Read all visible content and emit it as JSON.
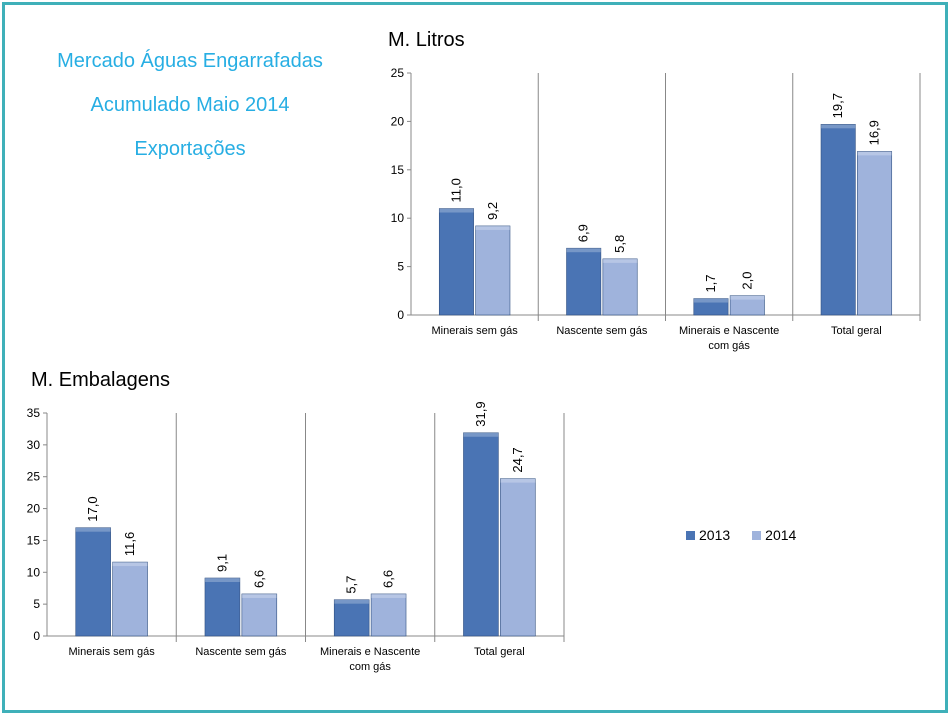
{
  "header": {
    "line1": "Mercado Águas Engarrafadas",
    "line2": "Acumulado Maio 2014",
    "line3": "Exportações"
  },
  "colors": {
    "series2013": "#4a74b4",
    "series2014": "#9fb3dc",
    "frame": "#3fb0b9",
    "headline": "#27aee3"
  },
  "legend": {
    "items": [
      "2013",
      "2014"
    ]
  },
  "chart_data": [
    {
      "type": "bar",
      "title": "M. Litros",
      "categories": [
        [
          "Minerais sem gás"
        ],
        [
          "Nascente sem gás"
        ],
        [
          "Minerais e Nascente",
          "com gás"
        ],
        [
          "Total geral"
        ]
      ],
      "series": [
        {
          "name": "2013",
          "values": [
            11.0,
            6.9,
            1.7,
            19.7
          ],
          "labels": [
            "11,0",
            "6,9",
            "1,7",
            "19,7"
          ]
        },
        {
          "name": "2014",
          "values": [
            9.2,
            5.8,
            2.0,
            16.9
          ],
          "labels": [
            "9,2",
            "5,8",
            "2,0",
            "16,9"
          ]
        }
      ],
      "ylim": [
        0,
        25
      ],
      "yticks": [
        0,
        5,
        10,
        15,
        20,
        25
      ],
      "grid": false
    },
    {
      "type": "bar",
      "title": "M. Embalagens",
      "categories": [
        [
          "Minerais sem gás"
        ],
        [
          "Nascente sem gás"
        ],
        [
          "Minerais e Nascente",
          "com gás"
        ],
        [
          "Total geral"
        ]
      ],
      "series": [
        {
          "name": "2013",
          "values": [
            17.0,
            9.1,
            5.7,
            31.9
          ],
          "labels": [
            "17,0",
            "9,1",
            "5,7",
            "31,9"
          ]
        },
        {
          "name": "2014",
          "values": [
            11.6,
            6.6,
            6.6,
            24.7
          ],
          "labels": [
            "11,6",
            "6,6",
            "6,6",
            "24,7"
          ]
        }
      ],
      "ylim": [
        0,
        35
      ],
      "yticks": [
        0,
        5,
        10,
        15,
        20,
        25,
        30,
        35
      ],
      "grid": false,
      "legend_position": "right"
    }
  ]
}
